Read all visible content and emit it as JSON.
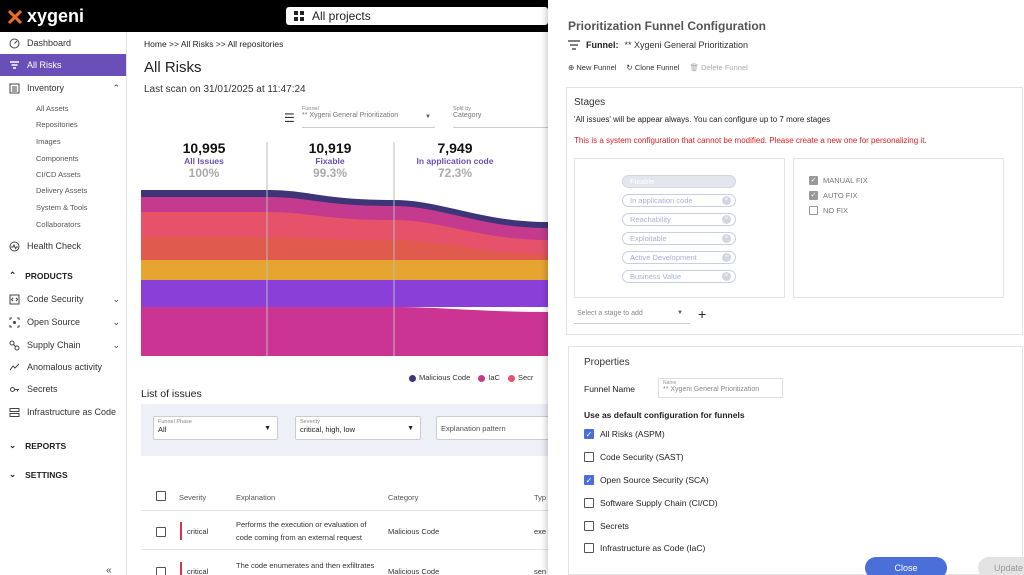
{
  "topbar": {
    "logo_text": "xygeni",
    "project_label": "All projects"
  },
  "sidebar": {
    "dashboard": "Dashboard",
    "all_risks": "All Risks",
    "inventory": "Inventory",
    "inventory_items": [
      "All Assets",
      "Repositories",
      "Images",
      "Components",
      "CI/CD Assets",
      "Delivery Assets",
      "System & Tools",
      "Collaborators"
    ],
    "health_check": "Health Check",
    "products": "PRODUCTS",
    "code_security": "Code Security",
    "open_source": "Open Source",
    "supply_chain": "Supply Chain",
    "anomalous": "Anomalous activity",
    "secrets": "Secrets",
    "iac": "Infrastructure as Code",
    "reports": "REPORTS",
    "settings": "SETTINGS",
    "collapse": "«"
  },
  "main": {
    "breadcrumb": "Home >> All Risks >> All repositories",
    "title": "All Risks",
    "last_scan": "Last scan on 31/01/2025 at 11:47:24",
    "funnel_label": "Funnel",
    "funnel_value": "** Xygeni General Prioritization",
    "split_label": "Split by",
    "split_value": "Category",
    "metrics": [
      {
        "num": "10,995",
        "label": "All Issues",
        "pct": "100%"
      },
      {
        "num": "10,919",
        "label": "Fixable",
        "pct": "99.3%"
      },
      {
        "num": "7,949",
        "label": "In application code",
        "pct": "72.3%"
      }
    ],
    "legend": [
      {
        "label": "Malicious Code",
        "color": "#3d3577"
      },
      {
        "label": "IaC",
        "color": "#c33a8e"
      },
      {
        "label": "Secr",
        "color": "#e6526a"
      }
    ],
    "list_title": "List of issues",
    "filters": {
      "phase_label": "Funnel Phase",
      "phase_value": "All",
      "severity_label": "Severity",
      "severity_value": "critical, high, low",
      "explanation_placeholder": "Explanation pattern"
    },
    "table": {
      "headers": [
        "Severity",
        "Explanation",
        "Category",
        "Typ"
      ],
      "rows": [
        {
          "severity": "critical",
          "explanation_1": "Performs the execution or evaluation of",
          "explanation_2": "code coming from an external request",
          "category": "Malicious Code",
          "type": "exe"
        },
        {
          "severity": "critical",
          "explanation_1": "The code enumerates and then exfiltrates",
          "explanation_2": "",
          "category": "Malicious Code",
          "type": "sen"
        }
      ]
    }
  },
  "panel": {
    "title": "Prioritization Funnel Configuration",
    "funnel_label": "Funnel:",
    "funnel_value": "** Xygeni General Prioritization",
    "actions": {
      "new": "New Funnel",
      "clone": "Clone Funnel",
      "delete": "Delete Funnel"
    },
    "stages_title": "Stages",
    "stages_note": "'All issues' will be appear always. You can configure up to 7 more stages",
    "stages_warning": "This is a system configuration that cannot be modified. Please create a new one for personalizing it.",
    "stages": [
      "Fixable",
      "In application code",
      "Reachability",
      "Exploitable",
      "Active Development",
      "Business Value"
    ],
    "fix_options": [
      {
        "label": "MANUAL FIX",
        "checked": true
      },
      {
        "label": "AUTO FIX",
        "checked": true
      },
      {
        "label": "NO FIX",
        "checked": false
      }
    ],
    "stage_select_placeholder": "Select a stage to add",
    "plus": "+",
    "properties_title": "Properties",
    "funnel_name_label": "Funnel Name",
    "funnel_name_field_label": "Name",
    "funnel_name_value": "** Xygeni General Prioritization",
    "default_title": "Use as default configuration for funnels",
    "defaults": [
      {
        "label": "All Risks (ASPM)",
        "checked": true
      },
      {
        "label": "Code Security (SAST)",
        "checked": false
      },
      {
        "label": "Open Source Security (SCA)",
        "checked": true
      },
      {
        "label": "Software Supply Chain (CI/CD)",
        "checked": false
      },
      {
        "label": "Secrets",
        "checked": false
      },
      {
        "label": "Infrastructure as Code (IaC)",
        "checked": false
      }
    ],
    "close_label": "Close",
    "update_label": "Update"
  },
  "colors": {
    "accent": "#6b4fb8",
    "primary_button": "#4a6fd9",
    "warning": "#e02020"
  }
}
